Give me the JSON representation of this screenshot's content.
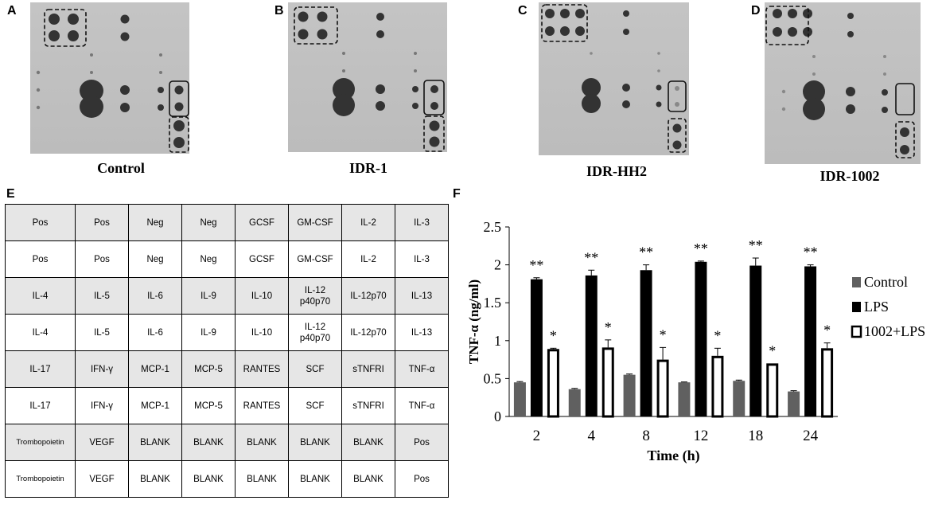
{
  "panels": {
    "a": {
      "letter": "A",
      "caption": "Control"
    },
    "b": {
      "letter": "B",
      "caption": "IDR-1"
    },
    "c": {
      "letter": "C",
      "caption": "IDR-HH2"
    },
    "d": {
      "letter": "D",
      "caption": "IDR-1002"
    },
    "e": {
      "letter": "E"
    },
    "f": {
      "letter": "F"
    }
  },
  "array_layout": {
    "rows": [
      {
        "cells": [
          "Pos",
          "Pos",
          "Neg",
          "Neg",
          "GCSF",
          "GM-CSF",
          "IL-2",
          "IL-3"
        ]
      },
      {
        "cells": [
          "Pos",
          "Pos",
          "Neg",
          "Neg",
          "GCSF",
          "GM-CSF",
          "IL-2",
          "IL-3"
        ]
      },
      {
        "cells": [
          "IL-4",
          "IL-5",
          "IL-6",
          "IL-9",
          "IL-10",
          "IL-12 p40p70",
          "IL-12p70",
          "IL-13"
        ]
      },
      {
        "cells": [
          "IL-4",
          "IL-5",
          "IL-6",
          "IL-9",
          "IL-10",
          "IL-12 p40p70",
          "IL-12p70",
          "IL-13"
        ]
      },
      {
        "cells": [
          "IL-17",
          "IFN-γ",
          "MCP-1",
          "MCP-5",
          "RANTES",
          "SCF",
          "sTNFRI",
          "TNF-α"
        ]
      },
      {
        "cells": [
          "IL-17",
          "IFN-γ",
          "MCP-1",
          "MCP-5",
          "RANTES",
          "SCF",
          "sTNFRI",
          "TNF-α"
        ]
      },
      {
        "cells": [
          "Trombopoietin",
          "VEGF",
          "BLANK",
          "BLANK",
          "BLANK",
          "BLANK",
          "BLANK",
          "Pos"
        ]
      },
      {
        "cells": [
          "Trombopoietin",
          "VEGF",
          "BLANK",
          "BLANK",
          "BLANK",
          "BLANK",
          "BLANK",
          "Pos"
        ]
      }
    ]
  },
  "chart_data": {
    "type": "bar",
    "xlabel": "Time (h)",
    "ylabel": "TNF-α (ng/ml)",
    "ylim": [
      0,
      2.5
    ],
    "yticks": [
      "0",
      "0.5",
      "1",
      "1.5",
      "2",
      "2.5"
    ],
    "grid": false,
    "legend_position": "right",
    "categories": [
      "2",
      "4",
      "8",
      "12",
      "18",
      "24"
    ],
    "series": [
      {
        "name": "Control",
        "color": "#606060",
        "style": "solid",
        "values": [
          0.45,
          0.36,
          0.55,
          0.45,
          0.47,
          0.33
        ],
        "errors": [
          0.01,
          0.01,
          0.01,
          0.005,
          0.01,
          0.01
        ],
        "annotations": [
          "",
          "",
          "",
          "",
          "",
          ""
        ]
      },
      {
        "name": "LPS",
        "color": "#000000",
        "style": "solid",
        "values": [
          1.81,
          1.86,
          1.93,
          2.04,
          1.99,
          1.98
        ],
        "errors": [
          0.02,
          0.07,
          0.07,
          0.01,
          0.1,
          0.02
        ],
        "annotations": [
          "**",
          "**",
          "**",
          "**",
          "**",
          "**"
        ]
      },
      {
        "name": "1002+LPS",
        "color": "#ffffff",
        "style": "outline",
        "values": [
          0.89,
          0.91,
          0.75,
          0.8,
          0.7,
          0.9
        ],
        "errors": [
          0.01,
          0.1,
          0.16,
          0.1,
          0.0,
          0.07
        ],
        "annotations": [
          "*",
          "*",
          "*",
          "*",
          "*",
          "*"
        ]
      }
    ]
  }
}
